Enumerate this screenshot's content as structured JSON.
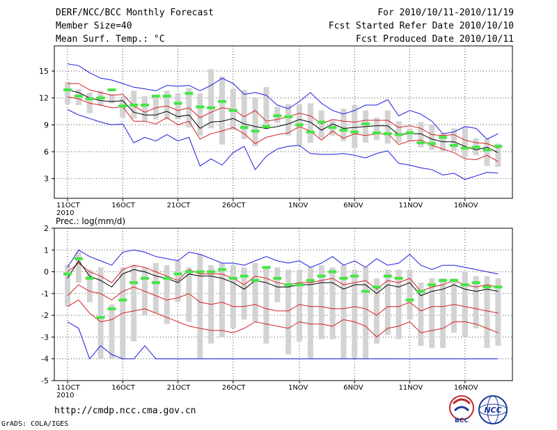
{
  "header": {
    "title": "DERF/NCC/BCC Monthly Forecast",
    "member_size": "Member Size=40",
    "variable": "Mean Surf. Temp.: °C",
    "period": "For 2010/10/11-2010/11/19",
    "start_date": "Fcst Started Refer Date 2010/10/10",
    "produced_date": "Fcst Produced Date 2010/10/11"
  },
  "footer": {
    "url": "http://cmdp.ncc.cma.gov.cn",
    "grads": "GrADS: COLA/IGES",
    "logo_left": "BCC",
    "logo_right": "NCC"
  },
  "colors": {
    "envelope": "#1a1ae0",
    "percentile": "#d62020",
    "mean": "#000000",
    "box": "#d3d3d3",
    "median": "#44e644",
    "grid": "#444444"
  },
  "chart_data": [
    {
      "type": "box",
      "title": "Mean Surf. Temp.: °C",
      "ylabel": "",
      "ylim": [
        0.8,
        17.8
      ],
      "yticks": [
        3,
        6,
        9,
        12,
        15
      ],
      "days": 40,
      "xtick_labels": [
        "11OCT",
        "16OCT",
        "21OCT",
        "26OCT",
        "1NOV",
        "6NOV",
        "11NOV",
        "16NOV"
      ],
      "xtick_days": [
        1,
        6,
        11,
        16,
        22,
        27,
        32,
        37
      ],
      "year_label": "2010",
      "series": [
        {
          "name": "max",
          "values": [
            15.8,
            15.6,
            14.8,
            14.2,
            14.0,
            13.6,
            13.2,
            13.0,
            12.8,
            13.4,
            13.3,
            13.4,
            12.8,
            13.4,
            14.2,
            13.6,
            12.4,
            12.6,
            12.3,
            11.2,
            10.8,
            11.6,
            12.6,
            11.4,
            10.6,
            10.2,
            10.6,
            11.2,
            11.2,
            11.8,
            10.0,
            10.6,
            10.2,
            9.4,
            8.0,
            8.2,
            8.8,
            8.6,
            7.4,
            8.0
          ]
        },
        {
          "name": "p90",
          "values": [
            13.6,
            13.6,
            12.9,
            12.6,
            12.3,
            12.4,
            11.1,
            10.4,
            10.9,
            11.1,
            10.6,
            10.9,
            9.8,
            10.4,
            10.9,
            10.7,
            9.9,
            10.6,
            9.4,
            9.6,
            9.9,
            10.3,
            10.0,
            9.1,
            9.6,
            9.4,
            9.3,
            9.5,
            9.5,
            9.5,
            8.7,
            8.9,
            8.6,
            7.9,
            7.8,
            7.9,
            7.3,
            7.0,
            6.9,
            6.4
          ]
        },
        {
          "name": "mean",
          "values": [
            12.9,
            12.6,
            12.0,
            11.7,
            11.6,
            11.7,
            10.4,
            10.1,
            10.1,
            10.5,
            9.9,
            10.1,
            8.6,
            9.3,
            9.4,
            9.7,
            9.1,
            8.8,
            8.6,
            8.8,
            9.1,
            9.6,
            9.3,
            8.4,
            9.1,
            8.6,
            8.7,
            8.8,
            8.9,
            8.9,
            7.9,
            8.0,
            8.0,
            7.4,
            7.1,
            7.1,
            6.6,
            6.2,
            6.5,
            5.9
          ]
        },
        {
          "name": "p10",
          "values": [
            12.1,
            11.9,
            11.4,
            11.2,
            10.9,
            11.0,
            9.4,
            9.4,
            9.1,
            9.8,
            9.0,
            9.4,
            7.4,
            8.0,
            8.3,
            8.7,
            8.0,
            6.9,
            7.6,
            7.9,
            8.1,
            8.8,
            8.3,
            7.3,
            8.3,
            7.5,
            8.0,
            7.8,
            8.0,
            8.0,
            6.8,
            7.2,
            7.3,
            6.7,
            6.3,
            5.9,
            5.2,
            5.1,
            5.6,
            4.9
          ]
        },
        {
          "name": "min",
          "values": [
            10.7,
            10.1,
            9.7,
            9.3,
            9.0,
            9.1,
            7.0,
            7.6,
            7.2,
            7.9,
            7.2,
            7.6,
            4.4,
            5.2,
            4.5,
            5.9,
            6.6,
            4.0,
            5.5,
            6.3,
            6.6,
            6.7,
            5.8,
            5.7,
            5.7,
            5.8,
            5.6,
            5.3,
            5.8,
            6.1,
            4.7,
            4.5,
            4.2,
            4.0,
            3.4,
            3.6,
            2.9,
            3.3,
            3.7,
            3.6
          ]
        },
        {
          "name": "box_high",
          "values": [
            13.8,
            13.0,
            12.6,
            12.8,
            12.4,
            12.1,
            12.8,
            12.2,
            12.1,
            12.8,
            12.5,
            13.1,
            12.5,
            15.2,
            14.4,
            13.0,
            12.9,
            12.0,
            13.2,
            11.0,
            11.3,
            11.3,
            11.4,
            10.6,
            9.5,
            10.8,
            11.2,
            10.6,
            9.8,
            10.6,
            9.4,
            8.6,
            9.3,
            9.0,
            8.1,
            8.6,
            8.7,
            7.5,
            7.4,
            6.9
          ]
        },
        {
          "name": "box_low",
          "values": [
            11.3,
            11.2,
            10.3,
            11.1,
            11.4,
            9.8,
            9.7,
            9.4,
            9.6,
            9.6,
            9.6,
            8.7,
            7.8,
            8.6,
            6.8,
            8.4,
            7.4,
            6.6,
            8.5,
            9.2,
            7.8,
            6.7,
            7.0,
            7.5,
            7.8,
            7.2,
            6.4,
            7.0,
            7.3,
            6.9,
            7.0,
            7.2,
            6.5,
            6.2,
            6.0,
            6.1,
            5.4,
            5.6,
            4.4,
            4.3
          ]
        },
        {
          "name": "median",
          "values": [
            12.9,
            12.2,
            11.9,
            12.0,
            12.9,
            11.1,
            11.2,
            11.2,
            12.2,
            12.2,
            11.4,
            12.5,
            11.0,
            10.9,
            11.6,
            10.6,
            8.7,
            8.3,
            8.8,
            10.0,
            9.9,
            9.0,
            8.2,
            9.3,
            8.7,
            8.4,
            8.2,
            9.1,
            8.1,
            8.0,
            7.9,
            8.1,
            7.0,
            6.9,
            7.6,
            6.7,
            6.4,
            6.5,
            6.2,
            6.6
          ]
        }
      ]
    },
    {
      "type": "box",
      "title": "Prec.: log(mm/d)",
      "ylabel": "",
      "ylim": [
        -5,
        2
      ],
      "yticks": [
        -5,
        -4,
        -3,
        -2,
        -1,
        0,
        1,
        2
      ],
      "days": 40,
      "xtick_labels": [
        "11OCT",
        "16OCT",
        "21OCT",
        "26OCT",
        "1NOV",
        "6NOV",
        "11NOV",
        "16NOV"
      ],
      "xtick_days": [
        1,
        6,
        11,
        16,
        22,
        27,
        32,
        37
      ],
      "year_label": "2010",
      "series": [
        {
          "name": "max",
          "values": [
            0.2,
            1.0,
            0.7,
            0.5,
            0.3,
            0.9,
            1.0,
            0.9,
            0.7,
            0.6,
            0.5,
            0.9,
            0.8,
            0.6,
            0.4,
            0.4,
            0.3,
            0.5,
            0.7,
            0.5,
            0.4,
            0.5,
            0.2,
            0.4,
            0.7,
            0.3,
            0.5,
            0.2,
            0.6,
            0.3,
            0.4,
            0.8,
            0.3,
            0.1,
            0.3,
            0.3,
            0.2,
            0.1,
            0.0,
            -0.1
          ]
        },
        {
          "name": "p90",
          "values": [
            0.0,
            0.4,
            0.0,
            -0.2,
            -0.5,
            0.1,
            0.3,
            0.2,
            0.0,
            -0.2,
            -0.4,
            0.1,
            -0.1,
            -0.1,
            -0.1,
            -0.3,
            -0.6,
            -0.2,
            -0.3,
            -0.5,
            -0.6,
            -0.5,
            -0.5,
            -0.4,
            -0.3,
            -0.6,
            -0.5,
            -0.4,
            -0.8,
            -0.4,
            -0.5,
            -0.3,
            -0.9,
            -0.7,
            -0.6,
            -0.4,
            -0.6,
            -0.7,
            -0.6,
            -0.7
          ]
        },
        {
          "name": "mean",
          "values": [
            -0.3,
            0.5,
            -0.2,
            -0.4,
            -0.7,
            -0.1,
            0.1,
            0.0,
            -0.2,
            -0.3,
            -0.5,
            -0.1,
            -0.2,
            -0.2,
            -0.3,
            -0.5,
            -0.8,
            -0.4,
            -0.5,
            -0.7,
            -0.7,
            -0.6,
            -0.6,
            -0.5,
            -0.5,
            -0.8,
            -0.6,
            -0.6,
            -1.0,
            -0.6,
            -0.7,
            -0.5,
            -1.1,
            -0.9,
            -0.8,
            -0.6,
            -0.8,
            -0.9,
            -0.8,
            -0.9
          ]
        },
        {
          "name": "p10",
          "values": [
            -1.1,
            -0.6,
            -0.9,
            -1.0,
            -1.3,
            -0.9,
            -0.7,
            -0.9,
            -1.1,
            -1.3,
            -1.2,
            -1.0,
            -1.4,
            -1.5,
            -1.4,
            -1.6,
            -1.6,
            -1.5,
            -1.7,
            -1.8,
            -1.8,
            -1.5,
            -1.6,
            -1.6,
            -1.7,
            -1.7,
            -1.6,
            -1.7,
            -2.0,
            -1.6,
            -1.6,
            -1.4,
            -1.8,
            -1.6,
            -1.6,
            -1.5,
            -1.6,
            -1.7,
            -1.8,
            -1.9
          ]
        },
        {
          "name": "min",
          "values": [
            -2.3,
            -2.6,
            -4.0,
            -3.4,
            -3.8,
            -4.0,
            -4.0,
            -3.4,
            -4.0,
            -4.0,
            -4.0,
            -4.0,
            -4.0,
            -4.0,
            -4.0,
            -4.0,
            -4.0,
            -4.0,
            -4.0,
            -4.0,
            -4.0,
            -4.0,
            -4.0,
            -4.0,
            -4.0,
            -4.0,
            -4.0,
            -4.0,
            -4.0,
            -4.0,
            -4.0,
            -4.0,
            -4.0,
            -4.0,
            -4.0,
            -4.0,
            -4.0,
            -4.0,
            -4.0,
            -4.0
          ]
        },
        {
          "name": "p5",
          "values": [
            -1.6,
            -1.3,
            -1.9,
            -2.3,
            -2.2,
            -1.9,
            -1.8,
            -1.7,
            -1.9,
            -2.1,
            -2.3,
            -2.5,
            -2.6,
            -2.7,
            -2.7,
            -2.8,
            -2.6,
            -2.3,
            -2.4,
            -2.5,
            -2.6,
            -2.3,
            -2.4,
            -2.4,
            -2.5,
            -2.2,
            -2.3,
            -2.5,
            -3.0,
            -2.6,
            -2.5,
            -2.3,
            -2.8,
            -2.7,
            -2.6,
            -2.3,
            -2.3,
            -2.4,
            -2.6,
            -2.8
          ]
        },
        {
          "name": "box_high",
          "values": [
            0.3,
            0.9,
            0.1,
            0.2,
            -1.5,
            0.2,
            0.3,
            0.2,
            0.4,
            0.3,
            0.5,
            0.2,
            0.8,
            0.3,
            0.4,
            0.3,
            0.2,
            0.4,
            0.2,
            0.2,
            0.1,
            0.1,
            0.2,
            0.3,
            0.2,
            0.3,
            0.1,
            0.2,
            -0.3,
            0.1,
            0.1,
            0.1,
            -0.5,
            -0.3,
            -0.3,
            -0.3,
            0.0,
            -0.2,
            -0.2,
            -0.3
          ]
        },
        {
          "name": "box_low",
          "values": [
            -1.6,
            -0.5,
            -1.4,
            -4.0,
            -4.0,
            -4.0,
            -3.2,
            -2.0,
            -1.9,
            -2.4,
            -1.4,
            -2.3,
            -4.0,
            -3.3,
            -3.0,
            -2.6,
            -2.2,
            -2.3,
            -3.3,
            -1.4,
            -3.8,
            -3.2,
            -4.0,
            -3.1,
            -3.1,
            -4.0,
            -4.0,
            -4.0,
            -3.3,
            -2.9,
            -3.1,
            -2.2,
            -3.4,
            -3.5,
            -3.5,
            -2.8,
            -3.0,
            -2.6,
            -3.5,
            -3.4
          ]
        },
        {
          "name": "median",
          "values": [
            -0.1,
            0.6,
            -0.3,
            -2.1,
            -1.7,
            -1.3,
            -0.5,
            -0.3,
            -0.5,
            -0.3,
            -0.1,
            0.0,
            0.0,
            0.0,
            0.1,
            -0.3,
            -0.2,
            -0.4,
            0.2,
            -0.3,
            -0.6,
            -0.6,
            -0.4,
            -0.2,
            0.0,
            -0.3,
            -0.2,
            -0.9,
            -0.7,
            -0.2,
            -0.3,
            -1.3,
            -0.9,
            -0.6,
            -0.4,
            -0.4,
            -0.6,
            -0.5,
            -0.7,
            -0.7
          ]
        }
      ]
    }
  ]
}
